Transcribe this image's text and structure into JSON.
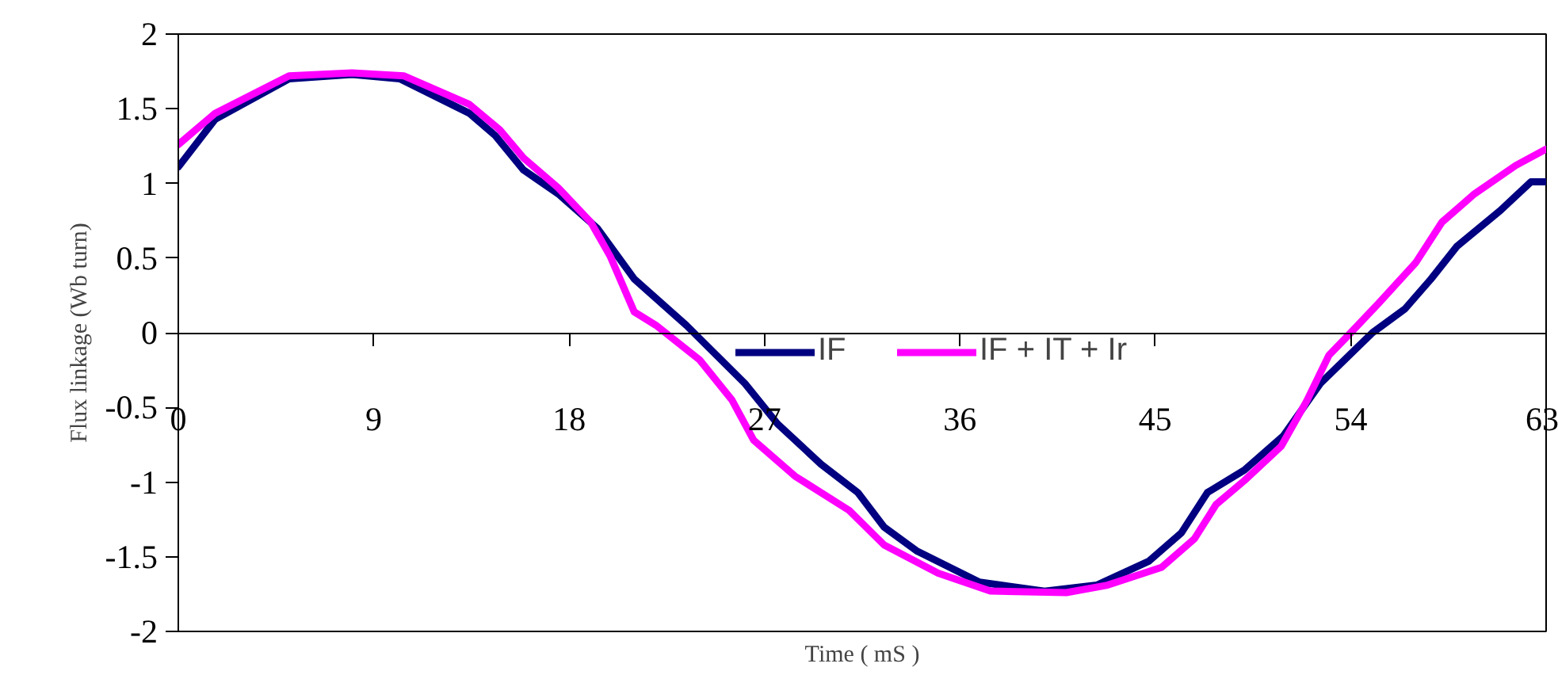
{
  "chart_data": {
    "type": "line",
    "xlabel": "Time ( mS )",
    "ylabel": "Flux linkage (Wb turn)",
    "xlim": [
      0,
      63
    ],
    "xticks": [
      0,
      9,
      18,
      27,
      36,
      45,
      54,
      63
    ],
    "ylim": [
      -2,
      2
    ],
    "yticks": [
      -2,
      -1.5,
      -1,
      -0.5,
      0,
      0.5,
      1,
      1.5,
      2
    ],
    "grid": false,
    "legend": "right",
    "marker": "none",
    "line_style": "solid",
    "series": [
      {
        "name": "IF",
        "color": "#000080",
        "x": [
          0,
          1.7,
          5.1,
          8,
          10.2,
          13.4,
          14.6,
          15.9,
          17.5,
          19.3,
          21,
          23.4,
          26.1,
          27.6,
          29.6,
          31.3,
          32.5,
          34,
          36.9,
          39.9,
          42.3,
          44.7,
          46.2,
          47.4,
          49.1,
          50.9,
          52.6,
          55,
          56.5,
          57.7,
          58.9,
          60.9,
          62.3,
          63
        ],
        "values": [
          1.11,
          1.43,
          1.7,
          1.73,
          1.7,
          1.47,
          1.32,
          1.09,
          0.93,
          0.7,
          0.36,
          0.05,
          -0.34,
          -0.61,
          -0.88,
          -1.07,
          -1.3,
          -1.46,
          -1.67,
          -1.73,
          -1.69,
          -1.53,
          -1.34,
          -1.07,
          -0.92,
          -0.69,
          -0.34,
          0.0,
          0.16,
          0.36,
          0.58,
          0.82,
          1.01,
          1.01
        ]
      },
      {
        "name": "IF + IT + Ir",
        "color": "#ff00ff",
        "x": [
          0,
          1.7,
          5.1,
          8,
          10.4,
          13.4,
          14.8,
          15.9,
          17.5,
          19,
          19.9,
          21,
          22,
          24,
          25.5,
          26.5,
          28.4,
          30.9,
          32.5,
          35,
          37.4,
          40.9,
          42.8,
          45.3,
          46.8,
          47.8,
          49.1,
          50.8,
          52,
          53,
          54,
          55.3,
          57,
          58.2,
          59.7,
          61.6,
          63
        ],
        "values": [
          1.26,
          1.47,
          1.72,
          1.74,
          1.72,
          1.53,
          1.36,
          1.17,
          0.97,
          0.74,
          0.51,
          0.14,
          0.05,
          -0.18,
          -0.45,
          -0.72,
          -0.96,
          -1.19,
          -1.42,
          -1.61,
          -1.73,
          -1.74,
          -1.69,
          -1.57,
          -1.38,
          -1.15,
          -0.99,
          -0.76,
          -0.45,
          -0.15,
          0.0,
          0.2,
          0.47,
          0.74,
          0.93,
          1.12,
          1.23
        ]
      }
    ]
  }
}
